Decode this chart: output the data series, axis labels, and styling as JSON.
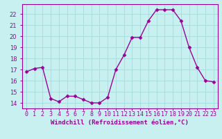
{
  "x": [
    0,
    1,
    2,
    3,
    4,
    5,
    6,
    7,
    8,
    9,
    10,
    11,
    12,
    13,
    14,
    15,
    16,
    17,
    18,
    19,
    20,
    21,
    22,
    23
  ],
  "y": [
    16.8,
    17.1,
    17.2,
    14.4,
    14.1,
    14.6,
    14.6,
    14.3,
    14.0,
    14.0,
    14.5,
    17.0,
    18.3,
    19.9,
    19.9,
    21.4,
    22.4,
    22.4,
    22.4,
    21.4,
    19.0,
    17.2,
    16.0,
    15.9
  ],
  "line_color": "#990099",
  "marker": "D",
  "marker_size": 2.5,
  "linewidth": 1.0,
  "bg_color": "#c8f0f0",
  "grid_color": "#aadddd",
  "xlabel": "Windchill (Refroidissement éolien,°C)",
  "ylabel_ticks": [
    14,
    15,
    16,
    17,
    18,
    19,
    20,
    21,
    22
  ],
  "xlim": [
    -0.5,
    23.5
  ],
  "ylim": [
    13.5,
    22.9
  ],
  "tick_color": "#990099",
  "tick_fontsize": 6.0,
  "xlabel_fontsize": 6.5
}
